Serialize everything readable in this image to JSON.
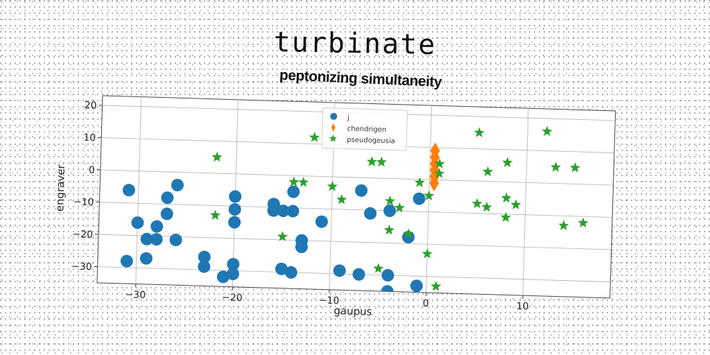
{
  "title": "turbinate",
  "subtitle": "peptonizing simultaneity",
  "chart_data": {
    "type": "scatter",
    "xlabel": "gaupus",
    "ylabel": "engraver",
    "xlim": [
      -34,
      19
    ],
    "ylim": [
      -35,
      23
    ],
    "xticks": [
      -30,
      -20,
      -10,
      0,
      10
    ],
    "yticks": [
      20,
      10,
      0,
      -10,
      -20,
      -30
    ],
    "xtick_labels": [
      "−30",
      "−20",
      "−10",
      "0",
      "10"
    ],
    "ytick_labels": [
      "20",
      "10",
      "0",
      "−10",
      "−20",
      "−30"
    ],
    "grid": true,
    "legend_position": "top-center",
    "series": [
      {
        "name": "j",
        "marker": "circle",
        "color": "#1f77b4",
        "points": [
          [
            -31,
            -6
          ],
          [
            -31,
            -28
          ],
          [
            -30,
            -16
          ],
          [
            -29,
            -21
          ],
          [
            -29,
            -27
          ],
          [
            -28,
            -17
          ],
          [
            -28,
            -21
          ],
          [
            -27,
            -8
          ],
          [
            -27,
            -13
          ],
          [
            -26,
            -4
          ],
          [
            -26,
            -21
          ],
          [
            -23,
            -26
          ],
          [
            -23,
            -29
          ],
          [
            -21,
            -32
          ],
          [
            -20,
            -15
          ],
          [
            -20,
            -7
          ],
          [
            -20,
            -11
          ],
          [
            -20,
            -28
          ],
          [
            -20,
            -31
          ],
          [
            -16,
            -9
          ],
          [
            -16,
            -11
          ],
          [
            -15,
            -29
          ],
          [
            -15,
            -11
          ],
          [
            -14,
            -30
          ],
          [
            -14,
            -11
          ],
          [
            -14,
            -5
          ],
          [
            -13,
            -22
          ],
          [
            -13,
            -20
          ],
          [
            -11,
            -14
          ],
          [
            -9,
            -29
          ],
          [
            -7,
            -4
          ],
          [
            -7,
            -30
          ],
          [
            -6,
            -11
          ],
          [
            -4,
            -10
          ],
          [
            -4,
            -30
          ],
          [
            -4,
            -35
          ],
          [
            -2,
            -18
          ],
          [
            -1,
            -33
          ],
          [
            -1,
            -6
          ]
        ]
      },
      {
        "name": "chendrigen",
        "marker": "thin_diamond",
        "color": "#ff7f0e",
        "points": [
          [
            0.5,
            9
          ],
          [
            0.5,
            7
          ],
          [
            0.5,
            5
          ],
          [
            0.5,
            3
          ],
          [
            0.5,
            1
          ],
          [
            0.5,
            -1
          ]
        ]
      },
      {
        "name": "pseudogeusia",
        "marker": "star",
        "color": "#2ca02c",
        "points": [
          [
            -22,
            5
          ],
          [
            -22,
            -13
          ],
          [
            -15,
            -19
          ],
          [
            -14,
            -2
          ],
          [
            -13,
            -2
          ],
          [
            -12,
            12
          ],
          [
            -10,
            -3
          ],
          [
            -9,
            -7
          ],
          [
            -6,
            5
          ],
          [
            -5,
            5
          ],
          [
            -5,
            -28
          ],
          [
            -4,
            -7
          ],
          [
            -4,
            -16
          ],
          [
            -3,
            -9
          ],
          [
            -2,
            -17
          ],
          [
            -1,
            -1
          ],
          [
            0,
            -23
          ],
          [
            0,
            -5
          ],
          [
            1,
            2
          ],
          [
            1,
            5
          ],
          [
            1,
            -33
          ],
          [
            5,
            15
          ],
          [
            5,
            -7
          ],
          [
            6,
            3
          ],
          [
            6,
            -8
          ],
          [
            8,
            6
          ],
          [
            8,
            -11
          ],
          [
            8,
            -5
          ],
          [
            9,
            -7
          ],
          [
            12,
            16
          ],
          [
            13,
            5
          ],
          [
            14,
            -13
          ],
          [
            15,
            5
          ],
          [
            16,
            -12
          ]
        ]
      }
    ]
  }
}
